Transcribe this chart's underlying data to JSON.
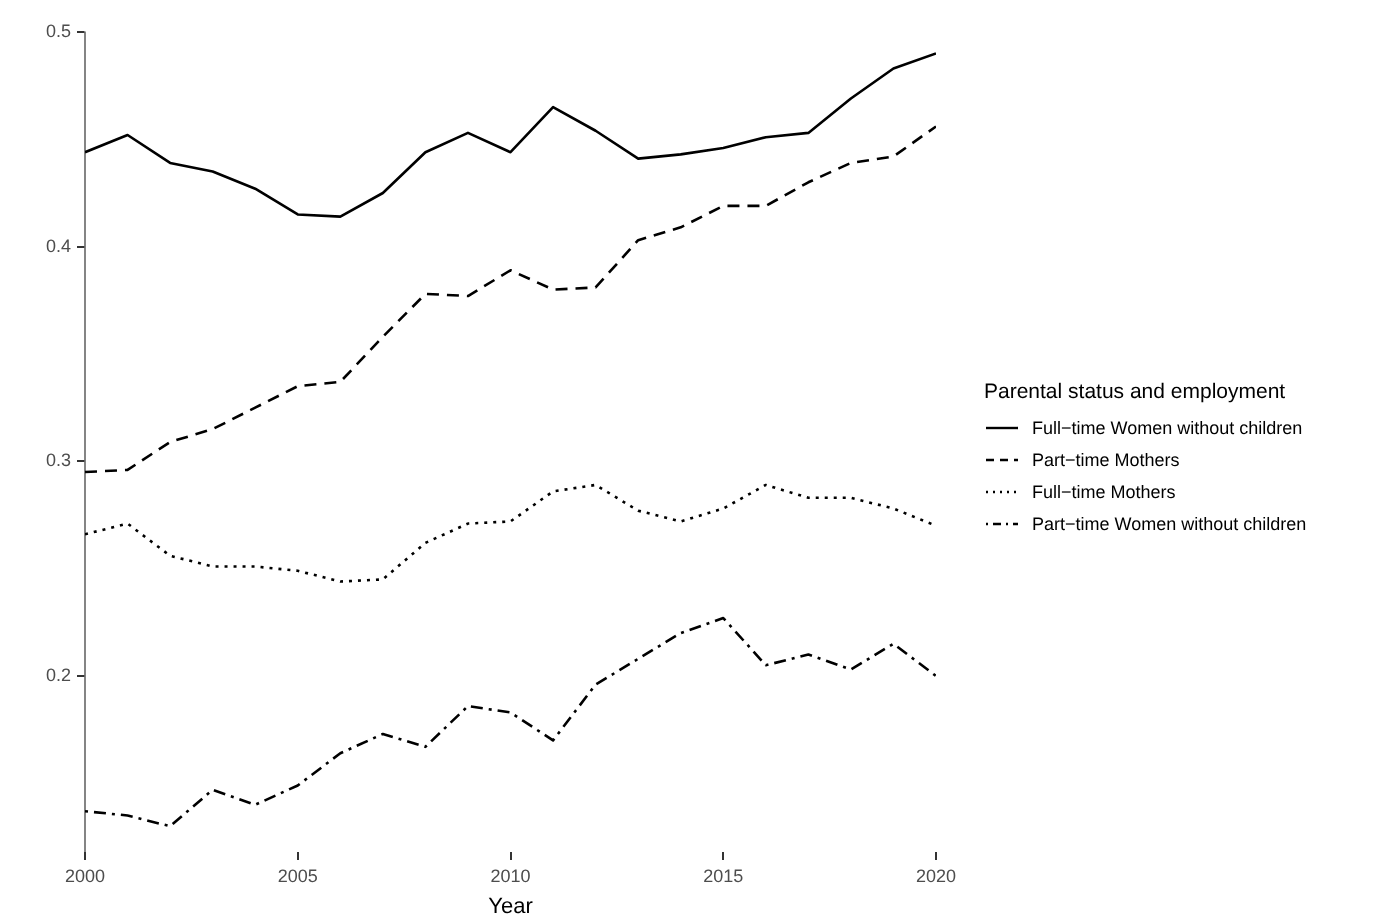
{
  "chart_data": {
    "type": "line",
    "xlabel": "Year",
    "legend_title": "Parental status and employment",
    "legend": "right",
    "grid": false,
    "marker": "none",
    "x": [
      2000,
      2001,
      2002,
      2003,
      2004,
      2005,
      2006,
      2007,
      2008,
      2009,
      2010,
      2011,
      2012,
      2013,
      2014,
      2015,
      2016,
      2017,
      2018,
      2019,
      2020
    ],
    "xlim": [
      2000,
      2020
    ],
    "ylim": [
      0.118,
      0.5
    ],
    "xticks": [
      2000,
      2005,
      2010,
      2015,
      2020
    ],
    "yticks": [
      0.2,
      0.3,
      0.4,
      0.5
    ],
    "series": [
      {
        "name": "Full−time Women without children",
        "color": "#000000",
        "line_style": "solid",
        "values": [
          0.444,
          0.452,
          0.439,
          0.435,
          0.427,
          0.415,
          0.414,
          0.425,
          0.444,
          0.453,
          0.444,
          0.465,
          0.454,
          0.441,
          0.443,
          0.446,
          0.451,
          0.453,
          0.469,
          0.483,
          0.49
        ]
      },
      {
        "name": "Part−time Mothers",
        "color": "#000000",
        "line_style": "dashed",
        "values": [
          0.295,
          0.296,
          0.309,
          0.315,
          0.325,
          0.335,
          0.337,
          0.358,
          0.378,
          0.377,
          0.389,
          0.38,
          0.381,
          0.403,
          0.409,
          0.419,
          0.419,
          0.43,
          0.439,
          0.442,
          0.456
        ]
      },
      {
        "name": "Full−time Mothers",
        "color": "#000000",
        "line_style": "dotted",
        "values": [
          0.266,
          0.271,
          0.256,
          0.251,
          0.251,
          0.249,
          0.244,
          0.245,
          0.262,
          0.271,
          0.272,
          0.286,
          0.289,
          0.277,
          0.272,
          0.278,
          0.289,
          0.283,
          0.283,
          0.278,
          0.27
        ]
      },
      {
        "name": "Part−time Women without children",
        "color": "#000000",
        "line_style": "dashdot",
        "values": [
          0.137,
          0.135,
          0.13,
          0.147,
          0.14,
          0.149,
          0.164,
          0.173,
          0.167,
          0.186,
          0.183,
          0.17,
          0.196,
          0.208,
          0.22,
          0.227,
          0.205,
          0.21,
          0.203,
          0.215,
          0.2
        ]
      }
    ]
  }
}
